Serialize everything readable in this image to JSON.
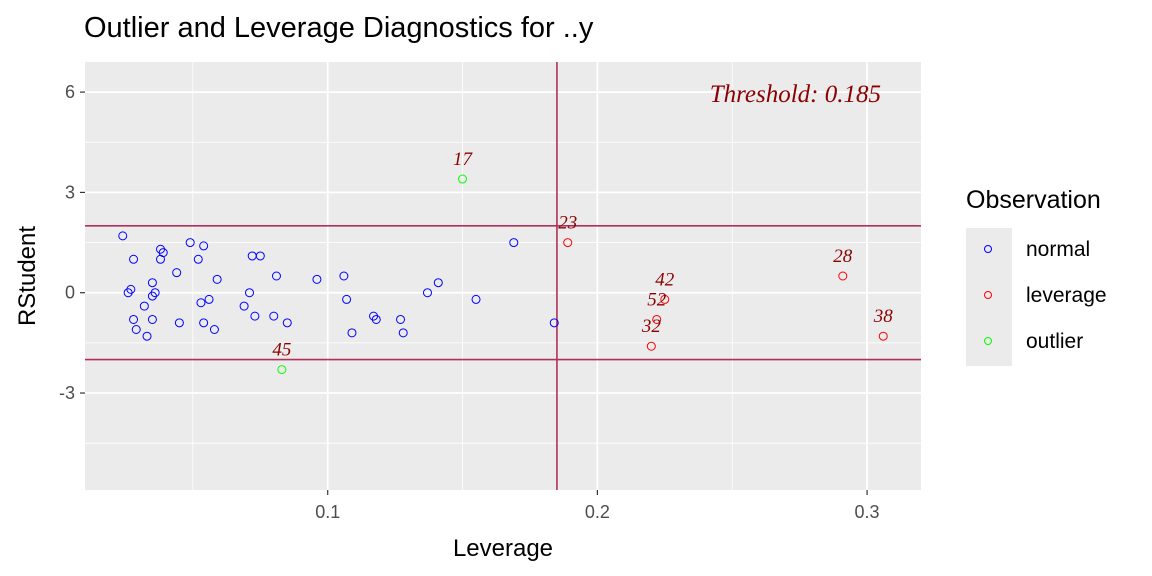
{
  "title": "Outlier and Leverage Diagnostics for ..y",
  "chart_data": {
    "type": "scatter",
    "title": "Outlier and Leverage Diagnostics for ..y",
    "xlabel": "Leverage",
    "ylabel": "RStudent",
    "xlim": [
      0.01,
      0.32
    ],
    "ylim": [
      -5.9,
      6.9
    ],
    "x_ticks": [
      0.1,
      0.2,
      0.3
    ],
    "x_tick_labels": [
      "0.1",
      "0.2",
      "0.3"
    ],
    "y_ticks": [
      -3,
      0,
      3,
      6
    ],
    "y_tick_labels": [
      "-3",
      "0",
      "3",
      "6"
    ],
    "grid": true,
    "legend_position": "right",
    "threshold_x": 0.185,
    "threshold_label": "Threshold: 0.185",
    "hlines": [
      -2,
      2
    ],
    "line_color": "#b0305c",
    "series": [
      {
        "name": "normal",
        "color": "#0000ff",
        "points": [
          [
            0.024,
            1.7
          ],
          [
            0.026,
            0.0
          ],
          [
            0.027,
            0.1
          ],
          [
            0.028,
            1.0
          ],
          [
            0.028,
            -0.8
          ],
          [
            0.029,
            -1.1
          ],
          [
            0.032,
            -0.4
          ],
          [
            0.033,
            -1.3
          ],
          [
            0.035,
            -0.1
          ],
          [
            0.035,
            0.3
          ],
          [
            0.035,
            -0.8
          ],
          [
            0.036,
            0.0
          ],
          [
            0.038,
            1.0
          ],
          [
            0.038,
            1.3
          ],
          [
            0.039,
            1.2
          ],
          [
            0.044,
            0.6
          ],
          [
            0.045,
            -0.9
          ],
          [
            0.049,
            1.5
          ],
          [
            0.052,
            1.0
          ],
          [
            0.053,
            -0.3
          ],
          [
            0.054,
            1.4
          ],
          [
            0.054,
            -0.9
          ],
          [
            0.056,
            -0.2
          ],
          [
            0.058,
            -1.1
          ],
          [
            0.059,
            0.4
          ],
          [
            0.069,
            -0.4
          ],
          [
            0.071,
            0.0
          ],
          [
            0.072,
            1.1
          ],
          [
            0.073,
            -0.7
          ],
          [
            0.075,
            1.1
          ],
          [
            0.08,
            -0.7
          ],
          [
            0.081,
            0.5
          ],
          [
            0.085,
            -0.9
          ],
          [
            0.096,
            0.4
          ],
          [
            0.106,
            0.5
          ],
          [
            0.107,
            -0.2
          ],
          [
            0.109,
            -1.2
          ],
          [
            0.117,
            -0.7
          ],
          [
            0.118,
            -0.8
          ],
          [
            0.127,
            -0.8
          ],
          [
            0.128,
            -1.2
          ],
          [
            0.137,
            0.0
          ],
          [
            0.141,
            0.3
          ],
          [
            0.155,
            -0.2
          ],
          [
            0.169,
            1.5
          ],
          [
            0.184,
            -0.9
          ]
        ],
        "labels": []
      },
      {
        "name": "leverage",
        "color": "#ff0000",
        "points": [
          [
            0.189,
            1.5
          ],
          [
            0.22,
            -1.6
          ],
          [
            0.222,
            -0.8
          ],
          [
            0.225,
            -0.2
          ],
          [
            0.291,
            0.5
          ],
          [
            0.306,
            -1.3
          ]
        ],
        "labels": [
          "23",
          "32",
          "52",
          "42",
          "28",
          "38"
        ]
      },
      {
        "name": "outlier",
        "color": "#00ff00",
        "points": [
          [
            0.15,
            3.4
          ],
          [
            0.083,
            -2.3
          ]
        ],
        "labels": [
          "17",
          "45"
        ]
      }
    ]
  },
  "legend": {
    "title": "Observation",
    "items": [
      {
        "label": "normal",
        "color": "#0000ff"
      },
      {
        "label": "leverage",
        "color": "#ff0000"
      },
      {
        "label": "outlier",
        "color": "#00ff00"
      }
    ]
  }
}
